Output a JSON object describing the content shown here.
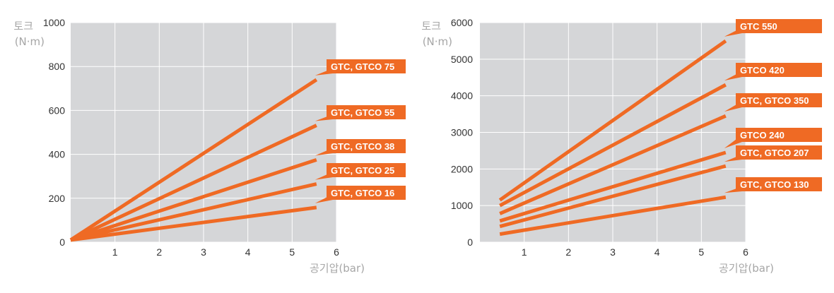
{
  "colors": {
    "plot_bg": "#d5d6d8",
    "grid": "#ffffff",
    "line": "#ef6a24",
    "tag_bg": "#ef6a24",
    "tag_text": "#ffffff",
    "unit_text": "#a6a6a6",
    "tick_text": "#333333"
  },
  "chart_data": [
    {
      "type": "line",
      "title": "",
      "ylabel": "토크",
      "yunit": "(N·m)",
      "xlabel": "공기압(bar)",
      "xlim": [
        0,
        6
      ],
      "ylim": [
        0,
        1000
      ],
      "xticks": [
        1,
        2,
        3,
        4,
        5,
        6
      ],
      "yticks": [
        0,
        200,
        400,
        600,
        800,
        1000
      ],
      "grid": true,
      "legend": "labels at right end of each line",
      "series": [
        {
          "name": "GTC, GTCO 75",
          "x": [
            0,
            5.55
          ],
          "y": [
            10,
            740
          ]
        },
        {
          "name": "GTC, GTCO 55",
          "x": [
            0,
            5.55
          ],
          "y": [
            10,
            532
          ]
        },
        {
          "name": "GTC, GTCO 38",
          "x": [
            0,
            5.55
          ],
          "y": [
            10,
            375
          ]
        },
        {
          "name": "GTC, GTCO 25",
          "x": [
            0,
            5.55
          ],
          "y": [
            10,
            265
          ]
        },
        {
          "name": "GTC, GTCO 16",
          "x": [
            0,
            5.55
          ],
          "y": [
            10,
            158
          ]
        }
      ]
    },
    {
      "type": "line",
      "title": "",
      "ylabel": "토크",
      "yunit": "(N·m)",
      "xlabel": "공기압(bar)",
      "xlim": [
        0,
        6
      ],
      "ylim": [
        0,
        6000
      ],
      "xticks": [
        1,
        2,
        3,
        4,
        5,
        6
      ],
      "yticks": [
        0,
        1000,
        2000,
        3000,
        4000,
        5000,
        6000
      ],
      "grid": true,
      "legend": "labels at right end of each line",
      "series": [
        {
          "name": "GTC 550",
          "x": [
            0.45,
            5.55
          ],
          "y": [
            1150,
            5500
          ]
        },
        {
          "name": "GTCO 420",
          "x": [
            0.45,
            5.55
          ],
          "y": [
            1000,
            4300
          ]
        },
        {
          "name": "GTC, GTCO 350",
          "x": [
            0.45,
            5.55
          ],
          "y": [
            780,
            3450
          ]
        },
        {
          "name": "GTCO 240",
          "x": [
            0.45,
            5.55
          ],
          "y": [
            580,
            2450
          ]
        },
        {
          "name": "GTC, GTCO 207",
          "x": [
            0.45,
            5.55
          ],
          "y": [
            430,
            2080
          ]
        },
        {
          "name": "GTC, GTCO 130",
          "x": [
            0.45,
            5.55
          ],
          "y": [
            220,
            1230
          ]
        }
      ]
    }
  ]
}
